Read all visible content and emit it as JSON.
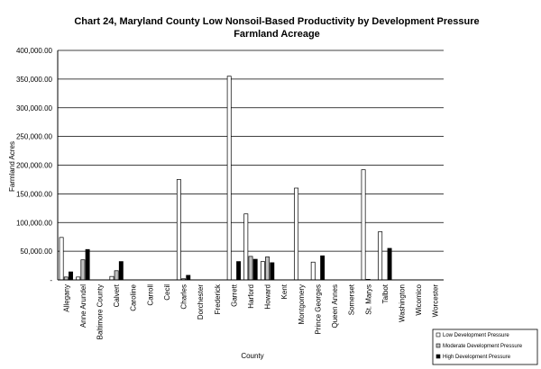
{
  "chart_data": {
    "type": "bar",
    "title": "Chart 24, Maryland County Low Nonsoil-Based Productivity by Development Pressure",
    "subtitle": "Farmland Acreage",
    "xlabel": "County",
    "ylabel": "Farmland Acres",
    "ylim": [
      0,
      400000
    ],
    "yticks": [
      "-",
      "50,000.00",
      "100,000.00",
      "150,000.00",
      "200,000.00",
      "250,000.00",
      "300,000.00",
      "350,000.00",
      "400,000.00"
    ],
    "grid": true,
    "legend_position": "bottom-right",
    "categories": [
      "Allegany",
      "Anne Arundel",
      "Baltimore County",
      "Calvert",
      "Caroline",
      "Carroll",
      "Cecil",
      "Charles",
      "Dorchester",
      "Frederick",
      "Garrett",
      "Harford",
      "Howard",
      "Kent",
      "Montgomery",
      "Prince Georges",
      "Queen Annes",
      "Somerset",
      "St. Marys",
      "Talbot",
      "Washington",
      "Wicomico",
      "Worcester"
    ],
    "series": [
      {
        "name": "Low Development Pressure",
        "color": "#ffffff",
        "values": [
          74000,
          5000,
          0,
          6000,
          0,
          0,
          0,
          175000,
          0,
          0,
          355000,
          115000,
          32000,
          0,
          160000,
          31000,
          0,
          0,
          192000,
          84000,
          0,
          0,
          0
        ]
      },
      {
        "name": "Moderate Development Pressure",
        "color": "#c0c0c0",
        "values": [
          5000,
          35000,
          0,
          16000,
          0,
          0,
          0,
          2000,
          0,
          0,
          0,
          41000,
          40000,
          0,
          0,
          0,
          0,
          0,
          1000,
          0,
          0,
          0,
          0
        ]
      },
      {
        "name": "High Development Pressure",
        "color": "#000000",
        "values": [
          14000,
          53000,
          0,
          32000,
          0,
          0,
          0,
          8000,
          0,
          0,
          32000,
          36000,
          30000,
          0,
          0,
          42000,
          0,
          0,
          0,
          55000,
          0,
          0,
          0
        ]
      }
    ]
  }
}
